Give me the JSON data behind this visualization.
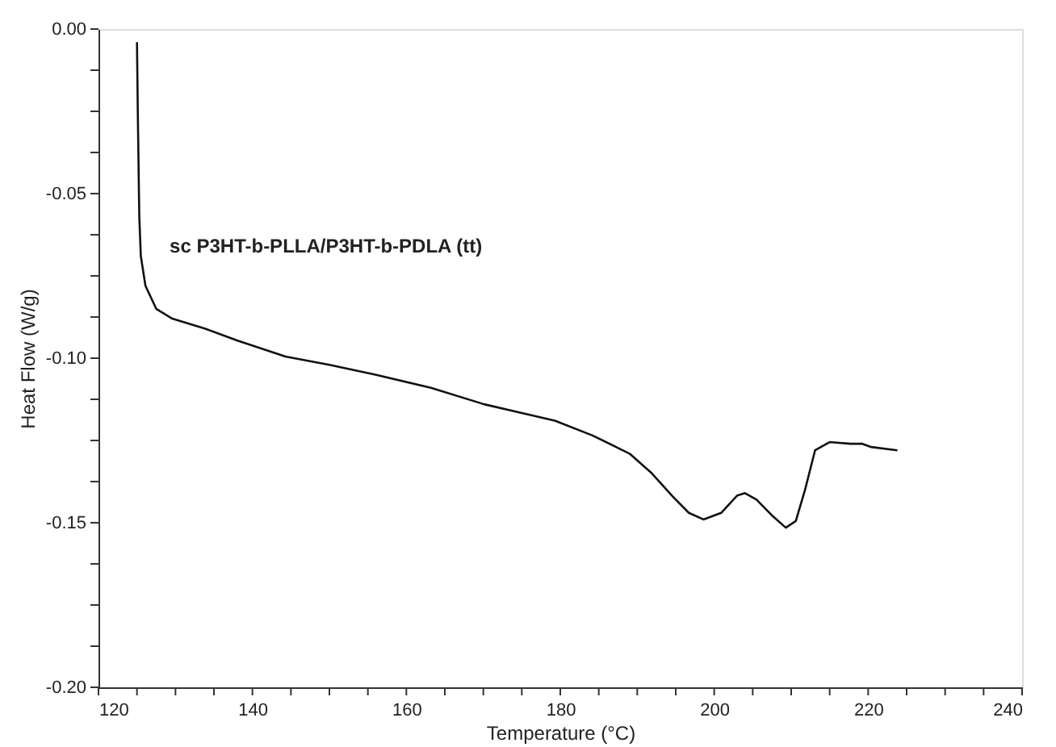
{
  "chart_data": {
    "type": "line",
    "xlabel": "Temperature (°C)",
    "ylabel": "Heat Flow (W/g)",
    "annotations": [
      "sc P3HT-b-PLLA/P3HT-b-PDLA (tt)"
    ],
    "xlim": [
      120,
      240
    ],
    "ylim": [
      -0.2,
      0.0
    ],
    "xticks": [
      120,
      {
        "value": 125,
        "label": null
      },
      {
        "value": 130,
        "label": null
      },
      {
        "value": 135,
        "label": null
      },
      140,
      {
        "value": 145,
        "label": null
      },
      {
        "value": 150,
        "label": null
      },
      {
        "value": 155,
        "label": null
      },
      160,
      {
        "value": 165,
        "label": null
      },
      {
        "value": 170,
        "label": null
      },
      {
        "value": 175,
        "label": null
      },
      180,
      {
        "value": 185,
        "label": null
      },
      {
        "value": 190,
        "label": null
      },
      {
        "value": 195,
        "label": null
      },
      200,
      {
        "value": 205,
        "label": null
      },
      {
        "value": 210,
        "label": null
      },
      {
        "value": 215,
        "label": null
      },
      220,
      {
        "value": 225,
        "label": null
      },
      {
        "value": 230,
        "label": null
      },
      {
        "value": 235,
        "label": null
      },
      240
    ],
    "yticks": [
      {
        "value": -0.2,
        "label": "-0.20"
      },
      {
        "value": -0.1875,
        "label": null
      },
      {
        "value": -0.175,
        "label": null
      },
      {
        "value": -0.1625,
        "label": null
      },
      {
        "value": -0.15,
        "label": "-0.15"
      },
      {
        "value": -0.1375,
        "label": null
      },
      {
        "value": -0.125,
        "label": null
      },
      {
        "value": -0.1125,
        "label": null
      },
      {
        "value": -0.1,
        "label": "-0.10"
      },
      {
        "value": -0.0875,
        "label": null
      },
      {
        "value": -0.075,
        "label": null
      },
      {
        "value": -0.0625,
        "label": null
      },
      {
        "value": -0.05,
        "label": "-0.05"
      },
      {
        "value": -0.0375,
        "label": null
      },
      {
        "value": -0.025,
        "label": null
      },
      {
        "value": -0.0125,
        "label": null
      },
      {
        "value": 0.0,
        "label": "0.00"
      }
    ],
    "grid": false,
    "marker": "none",
    "line_style": "solid",
    "series": [
      {
        "color": "#111111",
        "x": [
          125.0,
          125.1,
          125.3,
          125.5,
          126.1,
          127.5,
          129.6,
          133.8,
          138.0,
          144.3,
          150.0,
          156.0,
          163.2,
          170.1,
          179.3,
          184.2,
          189.0,
          191.9,
          194.6,
          196.7,
          198.6,
          200.9,
          203.0,
          204.0,
          205.5,
          207.6,
          209.3,
          210.6,
          211.8,
          213.1,
          215.0,
          217.7,
          219.2,
          220.4,
          223.8
        ],
        "values": [
          -0.004,
          -0.024,
          -0.057,
          -0.069,
          -0.078,
          -0.085,
          -0.088,
          -0.091,
          -0.0946,
          -0.0995,
          -0.102,
          -0.105,
          -0.109,
          -0.114,
          -0.119,
          -0.1235,
          -0.129,
          -0.135,
          -0.142,
          -0.147,
          -0.149,
          -0.147,
          -0.1417,
          -0.141,
          -0.143,
          -0.148,
          -0.1515,
          -0.1495,
          -0.14,
          -0.128,
          -0.1255,
          -0.126,
          -0.126,
          -0.127,
          -0.128
        ]
      }
    ]
  }
}
